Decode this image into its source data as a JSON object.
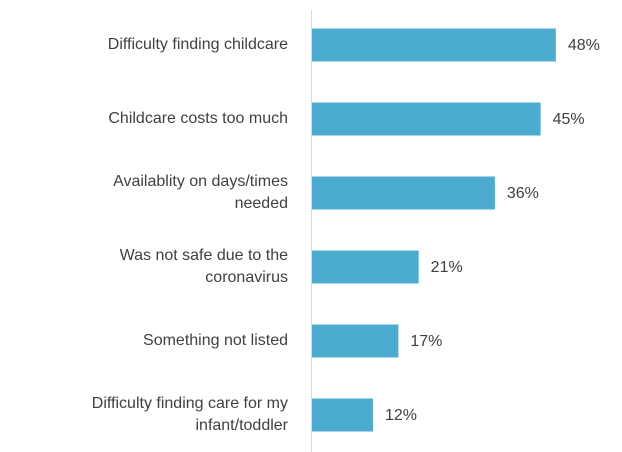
{
  "chart_data": {
    "type": "bar",
    "orientation": "horizontal",
    "categories": [
      "Difficulty finding childcare",
      "Childcare costs too much",
      "Availablity on days/times needed",
      "Was not safe due to the coronavirus",
      "Something not listed",
      "Difficulty finding care for my infant/toddler"
    ],
    "values": [
      48,
      45,
      36,
      21,
      17,
      12
    ],
    "value_labels": [
      "48%",
      "45%",
      "36%",
      "21%",
      "17%",
      "12%"
    ],
    "color": "#4bacd0"
  }
}
